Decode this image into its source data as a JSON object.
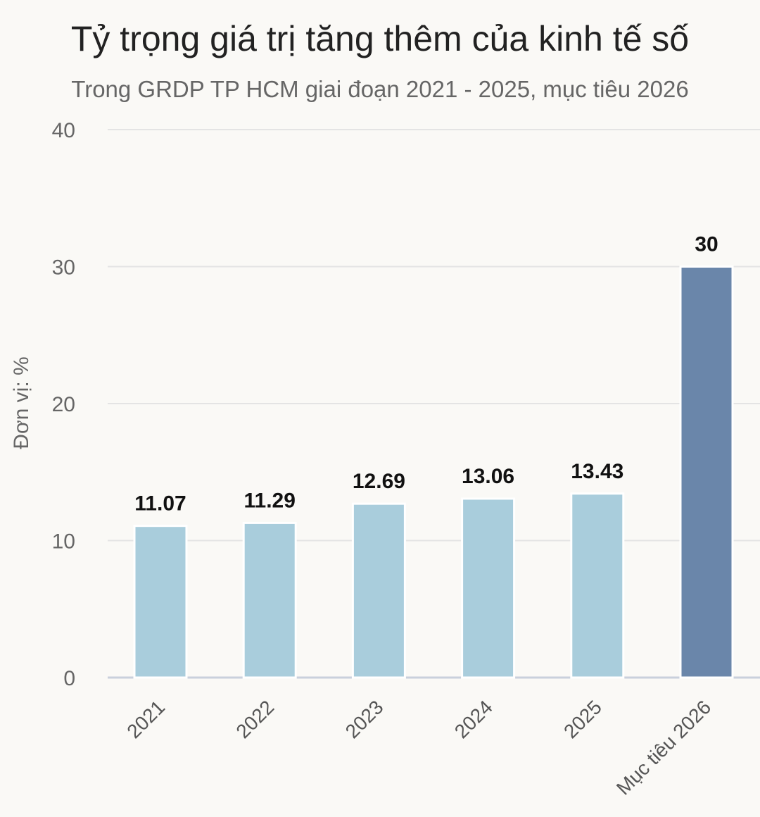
{
  "header": {
    "title": "Tỷ trọng giá trị tăng thêm của kinh tế số",
    "subtitle": "Trong GRDP TP HCM giai đoạn 2021 - 2025, mục tiêu 2026"
  },
  "colors": {
    "actual_bar": "#a9cddc",
    "target_bar": "#6a86aa",
    "gridline": "#e4e4e4",
    "axis": "#c9d0dc"
  },
  "chart_data": {
    "type": "bar",
    "title": "Tỷ trọng giá trị tăng thêm của kinh tế số",
    "subtitle": "Trong GRDP TP HCM giai đoạn 2021 - 2025, mục tiêu 2026",
    "xlabel": "",
    "ylabel": "Đơn vị: %",
    "categories": [
      "2021",
      "2022",
      "2023",
      "2024",
      "2025",
      "Mục tiêu 2026"
    ],
    "values": [
      11.07,
      11.29,
      12.69,
      13.06,
      13.43,
      30
    ],
    "value_labels": [
      "11.07",
      "11.29",
      "12.69",
      "13.06",
      "13.43",
      "30"
    ],
    "highlight": [
      false,
      false,
      false,
      false,
      false,
      true
    ],
    "ylim": [
      0,
      40
    ],
    "yticks": [
      0,
      10,
      20,
      30,
      40
    ],
    "grid": true,
    "legend": "none"
  }
}
